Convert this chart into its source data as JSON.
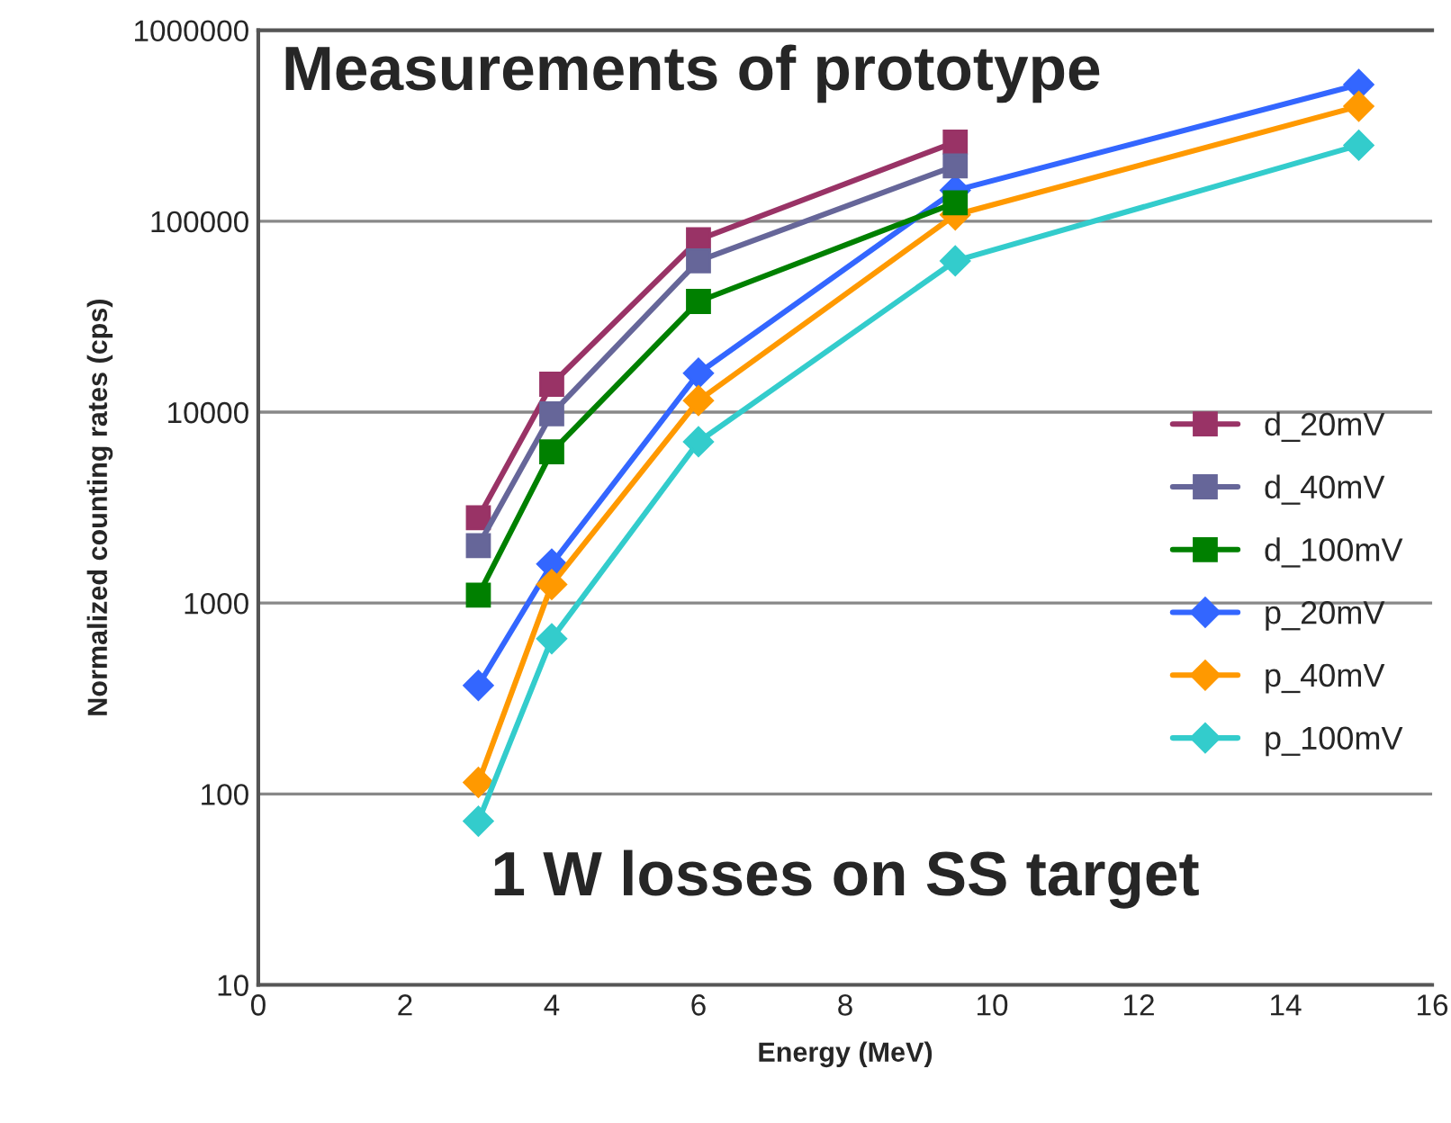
{
  "chart_data": {
    "type": "line",
    "title": "Measurements of prototype",
    "xlabel": "Energy (MeV)",
    "ylabel": "Normalized counting rates (cps)",
    "annotations": [
      "1 W losses on SS target"
    ],
    "log": "y",
    "xlim": [
      0,
      16
    ],
    "xticks": [
      0,
      2,
      4,
      6,
      8,
      10,
      12,
      14,
      16
    ],
    "ylim": [
      10,
      1000000
    ],
    "yticks": [
      10,
      100,
      1000,
      10000,
      100000,
      1000000
    ],
    "grid": "y",
    "legend": "right",
    "line_style": "solid",
    "series": [
      {
        "name": "d_20mV",
        "color": "#993366",
        "marker": "square",
        "x": [
          3,
          4,
          6,
          9.5
        ],
        "values": [
          2800,
          14000,
          80000,
          260000
        ]
      },
      {
        "name": "d_40mV",
        "color": "#666699",
        "marker": "square",
        "x": [
          3,
          4,
          6,
          9.5
        ],
        "values": [
          2000,
          9800,
          62000,
          195000
        ]
      },
      {
        "name": "d_100mV",
        "color": "#008000",
        "marker": "square",
        "x": [
          3,
          4,
          6,
          9.5
        ],
        "values": [
          1100,
          6200,
          38000,
          125000
        ]
      },
      {
        "name": "p_20mV",
        "color": "#3366ff",
        "marker": "diamond",
        "x": [
          3,
          4,
          6,
          9.5,
          15
        ],
        "values": [
          370,
          1600,
          16000,
          145000,
          520000
        ]
      },
      {
        "name": "p_40mV",
        "color": "#ff9900",
        "marker": "diamond",
        "x": [
          3,
          4,
          6,
          9.5,
          15
        ],
        "values": [
          115,
          1250,
          11500,
          108000,
          400000
        ]
      },
      {
        "name": "p_100mV",
        "color": "#33cccc",
        "marker": "diamond",
        "x": [
          3,
          4,
          6,
          9.5,
          15
        ],
        "values": [
          72,
          650,
          7000,
          62000,
          250000
        ]
      }
    ]
  }
}
